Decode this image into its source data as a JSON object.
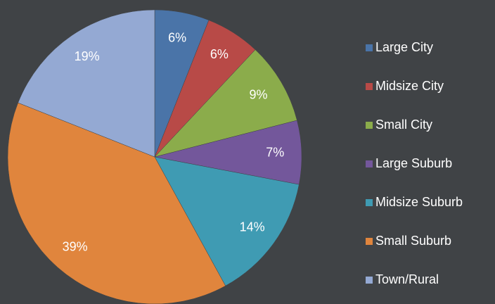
{
  "chart_data": {
    "type": "pie",
    "categories": [
      "Large City",
      "Midsize City",
      "Small City",
      "Large Suburb",
      "Midsize Suburb",
      "Small Suburb",
      "Town/Rural"
    ],
    "values": [
      6,
      6,
      9,
      7,
      14,
      39,
      19
    ],
    "value_labels": [
      "6%",
      "6%",
      "9%",
      "7%",
      "14%",
      "39%",
      "19%"
    ],
    "colors": [
      "#4a74a8",
      "#b84a47",
      "#8bac4b",
      "#73579b",
      "#3f9bb3",
      "#e0853d",
      "#94a9d3"
    ],
    "legend": "right"
  }
}
